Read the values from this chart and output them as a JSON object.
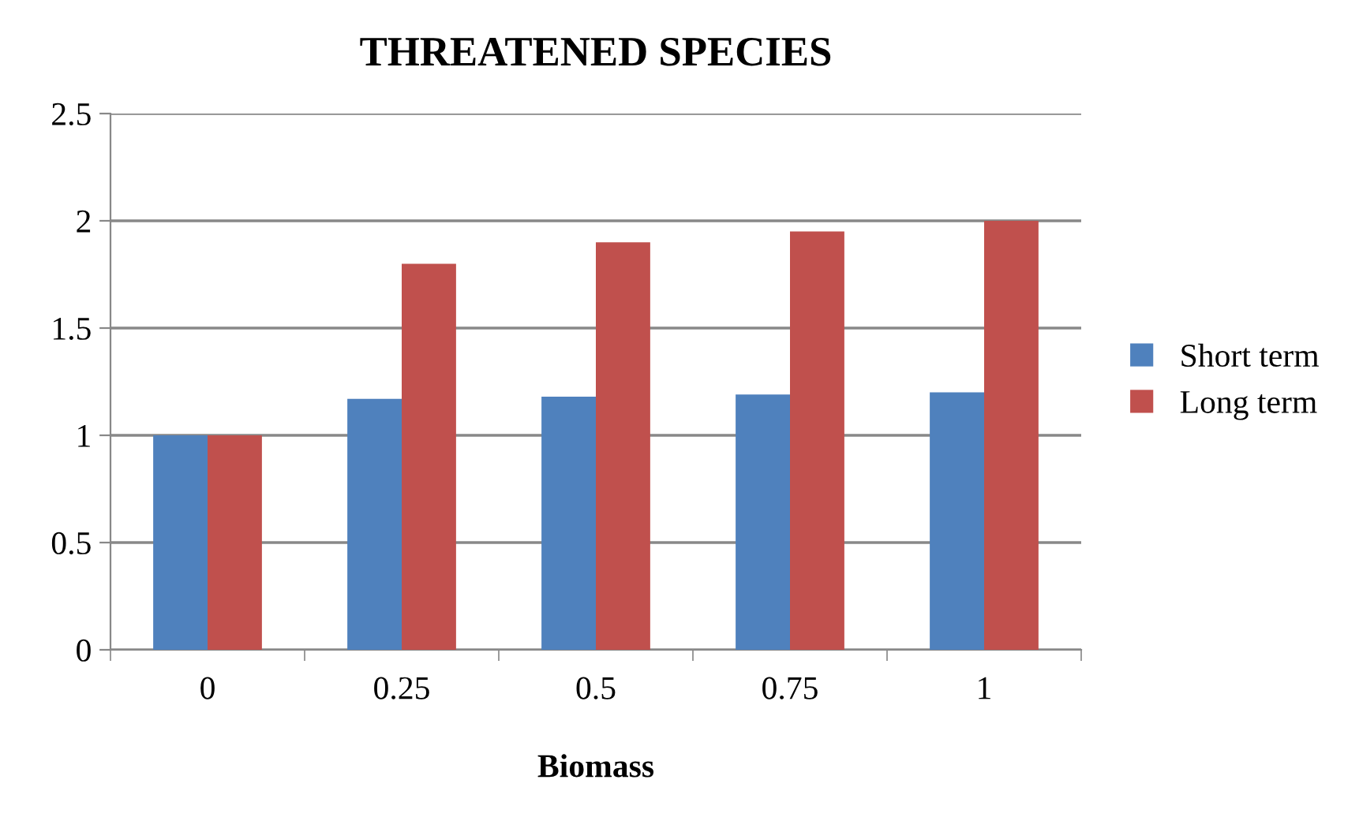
{
  "chart_data": {
    "type": "bar",
    "title": "THREATENED SPECIES",
    "xlabel": "Biomass",
    "categories": [
      "0",
      "0.25",
      "0.5",
      "0.75",
      "1"
    ],
    "series": [
      {
        "name": "Short term",
        "color": "#4f81bd",
        "values": [
          1,
          1.17,
          1.18,
          1.19,
          1.2
        ]
      },
      {
        "name": "Long term",
        "color": "#c0504d",
        "values": [
          1,
          1.8,
          1.9,
          1.95,
          2
        ]
      }
    ],
    "ylim": [
      0,
      2.5
    ],
    "yticks": [
      0,
      0.5,
      1,
      1.5,
      2,
      2.5
    ],
    "grid": "y",
    "legend": "right"
  }
}
